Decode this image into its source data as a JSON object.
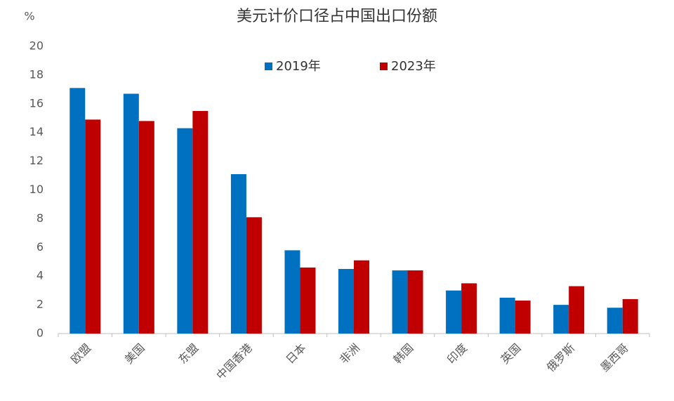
{
  "chart_data": {
    "type": "bar",
    "title": "美元计价口径占中国出口份额",
    "y_label": "%",
    "categories": [
      "欧盟",
      "美国",
      "东盟",
      "中国香港",
      "日本",
      "非洲",
      "韩国",
      "印度",
      "英国",
      "俄罗斯",
      "墨西哥"
    ],
    "series": [
      {
        "name": "2019年",
        "color": "#0070c0",
        "values": [
          17.1,
          16.7,
          14.3,
          11.1,
          5.8,
          4.5,
          4.4,
          3.0,
          2.5,
          2.0,
          1.8
        ]
      },
      {
        "name": "2023年",
        "color": "#c00000",
        "values": [
          14.9,
          14.8,
          15.5,
          8.1,
          4.6,
          5.1,
          4.4,
          3.5,
          2.3,
          3.3,
          2.4
        ]
      }
    ],
    "ylim": [
      0,
      20
    ],
    "yticks": [
      0,
      2,
      4,
      6,
      8,
      10,
      12,
      14,
      16,
      18,
      20
    ],
    "grid": false
  }
}
